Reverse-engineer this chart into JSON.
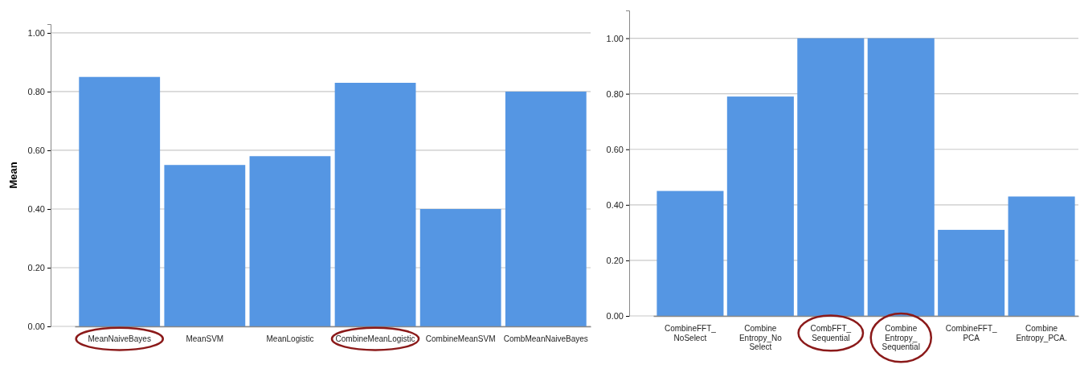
{
  "chart_data": [
    {
      "type": "bar",
      "ylabel": "Mean",
      "categories": [
        "MeanNaiveBayes",
        "MeanSVM",
        "MeanLogistic",
        "CombineMeanLogistic",
        "CombineMeanSVM",
        "CombMeanNaiveBayes"
      ],
      "values": [
        0.85,
        0.55,
        0.58,
        0.83,
        0.4,
        0.8
      ],
      "color": "#5596e3",
      "ylim": [
        0,
        1.03
      ],
      "yticks": [
        {
          "value": 0,
          "label": "0.00"
        },
        {
          "value": 0.2,
          "label": "0.20"
        },
        {
          "value": 0.4,
          "label": "0.40"
        },
        {
          "value": 0.6,
          "label": "0.60"
        },
        {
          "value": 0.8,
          "label": "0.80"
        },
        {
          "value": 1,
          "label": "1.00"
        }
      ],
      "grid": "y"
    },
    {
      "type": "bar",
      "categories": [
        "CombineFFT_ NoSelect",
        "Combine Entropy_No Select",
        "CombFFT_ Sequential",
        "Combine Entropy_ Sequential",
        "CombineFFT_ PCA",
        "Combine Entropy_PCA."
      ],
      "values": [
        0.45,
        0.79,
        1.0,
        1.0,
        0.31,
        0.43
      ],
      "color": "#5596e3",
      "ylim": [
        0,
        1.1
      ],
      "yticks": [
        {
          "value": 0,
          "label": "0.00"
        },
        {
          "value": 0.2,
          "label": "0.20"
        },
        {
          "value": 0.4,
          "label": "0.40"
        },
        {
          "value": 0.6,
          "label": "0.60"
        },
        {
          "value": 0.8,
          "label": "0.80"
        },
        {
          "value": 1,
          "label": "1.00"
        }
      ],
      "grid": "y"
    }
  ]
}
